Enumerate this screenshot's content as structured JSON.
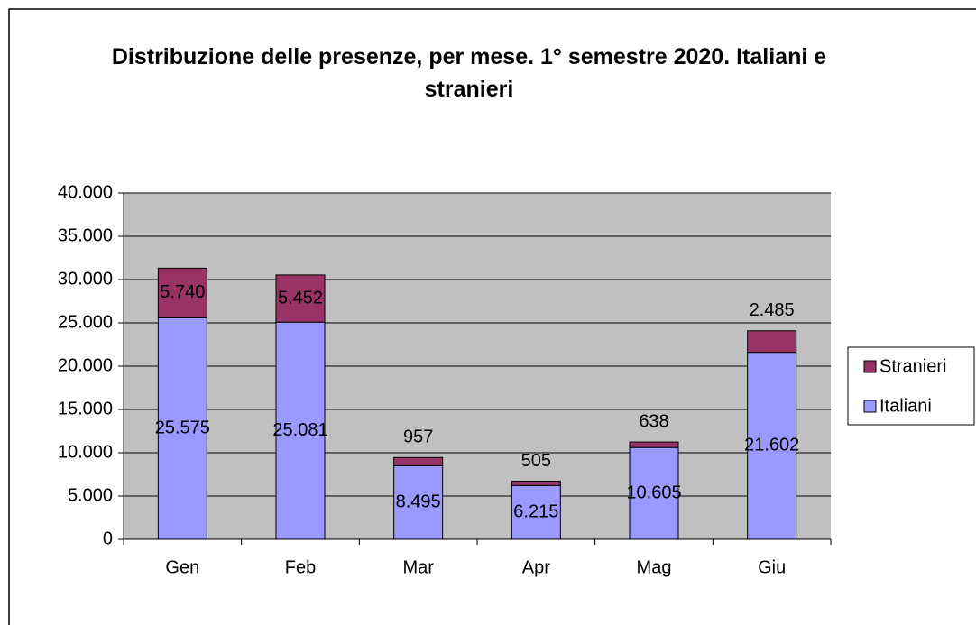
{
  "chart_data": {
    "type": "stacked_bar",
    "title": "Distribuzione delle presenze, per mese. 1° semestre 2020. Italiani  e stranieri",
    "categories": [
      "Gen",
      "Feb",
      "Mar",
      "Apr",
      "Mag",
      "Giu"
    ],
    "series": [
      {
        "name": "Italiani",
        "color": "#9999ff",
        "values": [
          25575,
          25081,
          8495,
          6215,
          10605,
          21602
        ],
        "value_labels": [
          "25.575",
          "25.081",
          "8.495",
          "6.215",
          "10.605",
          "21.602"
        ]
      },
      {
        "name": "Stranieri",
        "color": "#993366",
        "values": [
          5740,
          5452,
          957,
          505,
          638,
          2485
        ],
        "value_labels": [
          "5.740",
          "5.452",
          "957",
          "505",
          "638",
          "2.485"
        ]
      }
    ],
    "ylim": [
      0,
      40000
    ],
    "yticks": [
      0,
      {
        "value": 5000,
        "label": "5.000"
      },
      {
        "value": 10000,
        "label": "10.000"
      },
      {
        "value": 15000,
        "label": "15.000"
      },
      {
        "value": 20000,
        "label": "20.000"
      },
      {
        "value": 25000,
        "label": "25.000"
      },
      {
        "value": 30000,
        "label": "30.000"
      },
      {
        "value": 35000,
        "label": "35.000"
      },
      {
        "value": 40000,
        "label": "40.000"
      }
    ],
    "grid": true,
    "legend": "right"
  }
}
